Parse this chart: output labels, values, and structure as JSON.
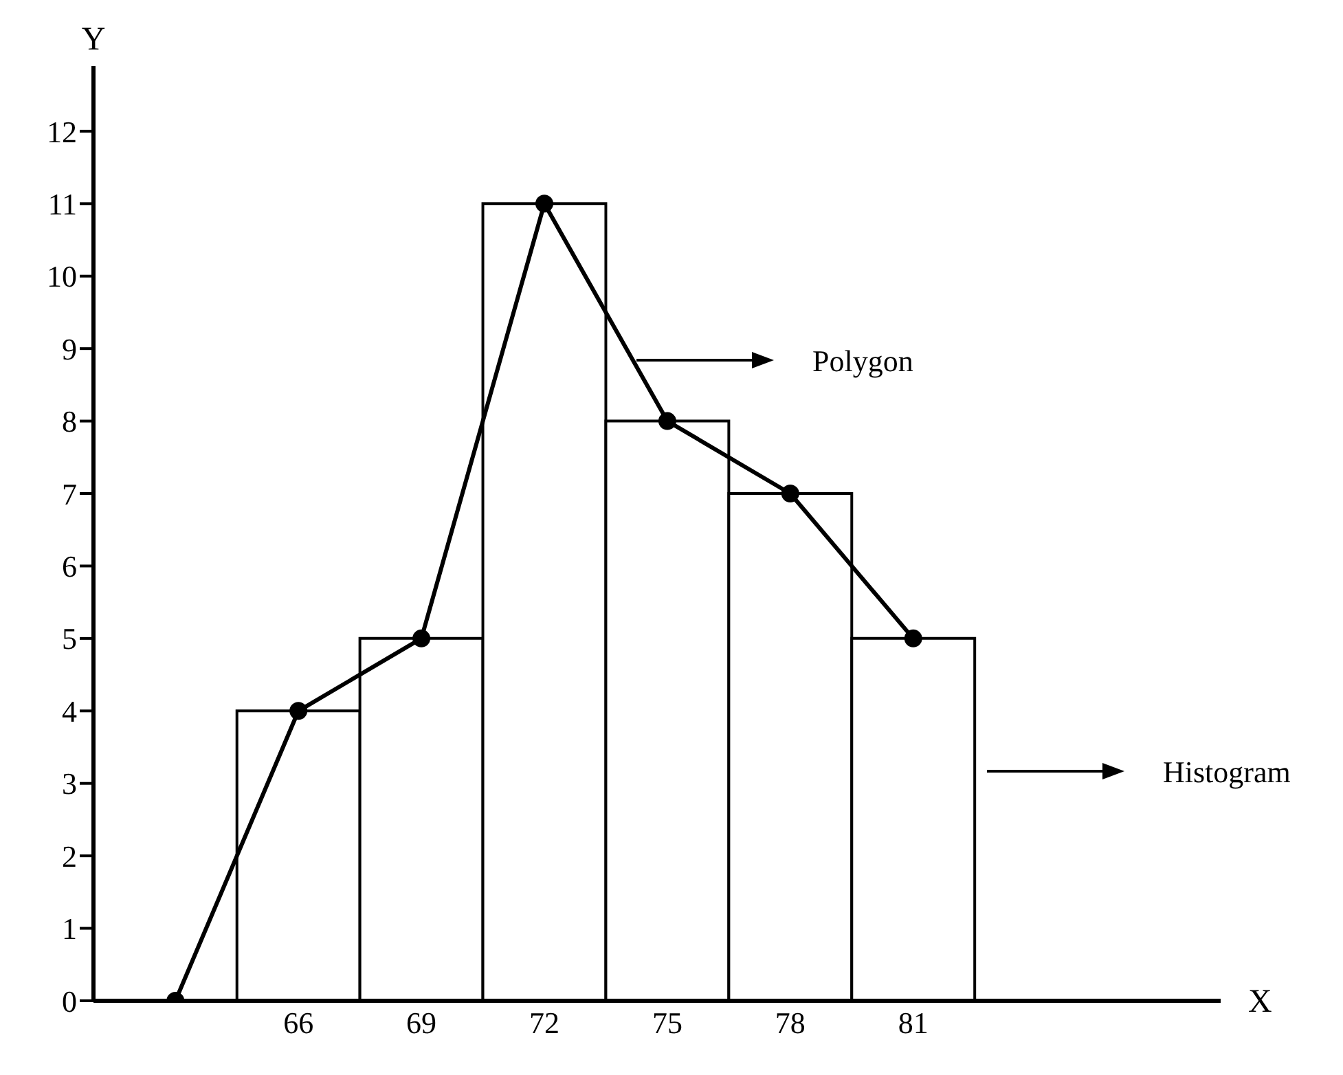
{
  "chart_data": {
    "type": "histogram",
    "xlabel": "X",
    "ylabel": "Y",
    "xlim": [
      61,
      88.5
    ],
    "xticks": [
      66,
      69,
      72,
      75,
      78,
      81
    ],
    "ylim": [
      0,
      12.9
    ],
    "yticks": [
      {
        "value": 0,
        "label": "0"
      },
      1,
      2,
      3,
      4,
      5,
      6,
      7,
      8,
      9,
      10,
      11,
      12
    ],
    "series": [
      {
        "color": "#000000",
        "bins": [
          64.5,
          67.5,
          70.5,
          73.5,
          76.5,
          79.5,
          82.5
        ],
        "values": [
          4,
          5,
          11,
          8,
          7,
          5
        ]
      },
      {
        "type": "line",
        "color": "#000000",
        "marker": "circle",
        "x": [
          63,
          66,
          69,
          72,
          75,
          78,
          81
        ],
        "values": [
          0,
          4,
          5,
          11,
          8,
          7,
          5
        ]
      }
    ],
    "annotations": [
      "Polygon",
      "Histogram"
    ]
  }
}
